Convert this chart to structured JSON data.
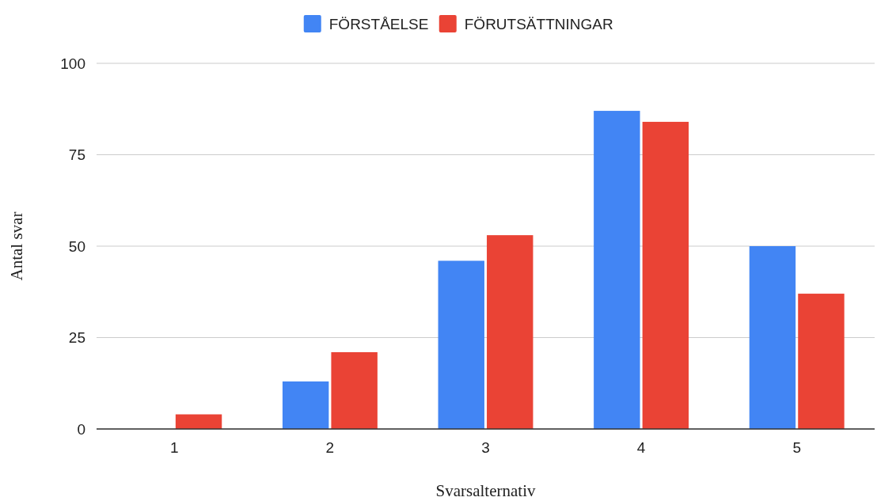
{
  "chart_data": {
    "type": "bar",
    "xlabel": "Svarsalternativ",
    "ylabel": "Antal svar",
    "categories": [
      "1",
      "2",
      "3",
      "4",
      "5"
    ],
    "series": [
      {
        "name": "FÖRSTÅELSE",
        "color": "#4285f4",
        "values": [
          0,
          13,
          46,
          87,
          50
        ]
      },
      {
        "name": "FÖRUTSÄTTNINGAR",
        "color": "#ea4335",
        "values": [
          4,
          21,
          53,
          84,
          37
        ]
      }
    ],
    "ylim": [
      0,
      100
    ],
    "yticks": [
      0,
      25,
      50,
      75,
      100
    ],
    "grid": "y",
    "legend": "top"
  }
}
